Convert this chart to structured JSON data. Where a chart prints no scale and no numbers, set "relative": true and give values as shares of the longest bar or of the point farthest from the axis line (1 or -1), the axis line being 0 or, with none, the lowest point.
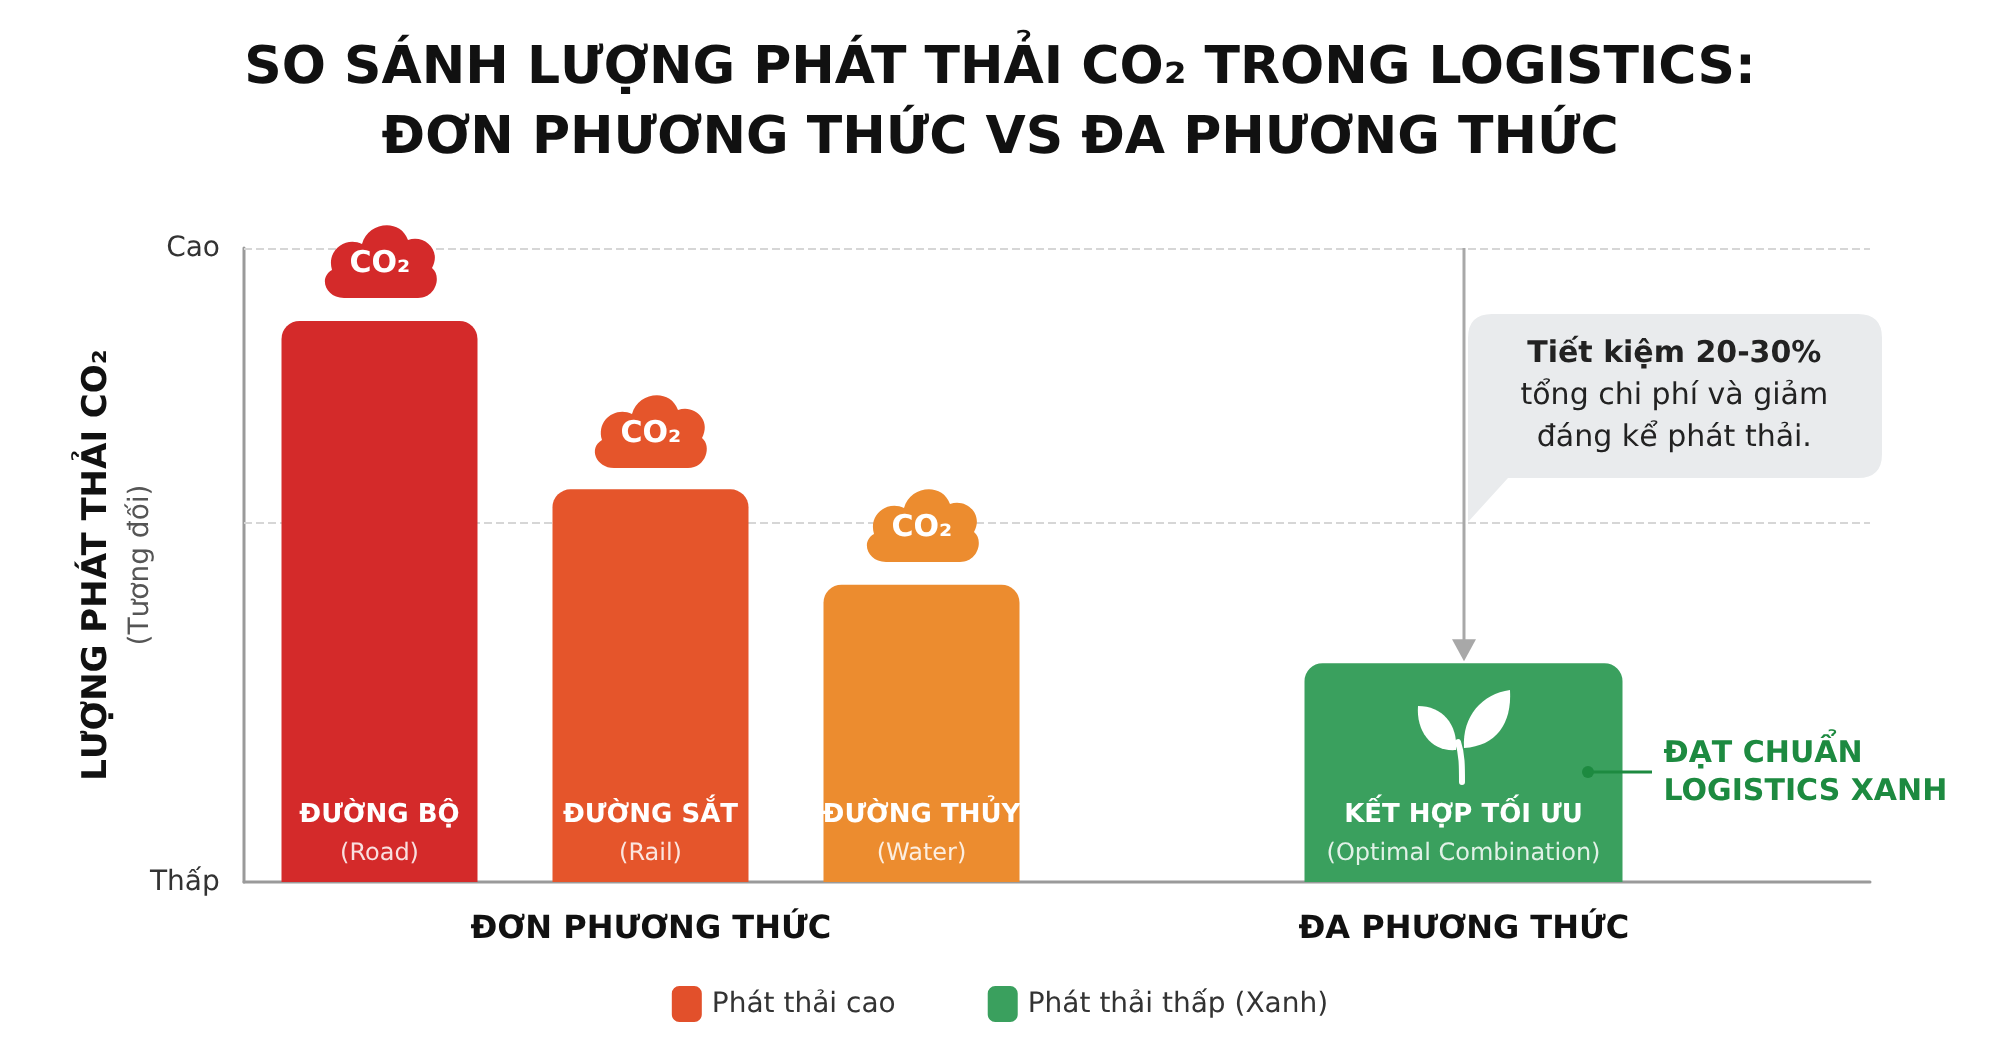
{
  "chart_data": {
    "type": "bar",
    "title": "SO SÁNH LƯỢNG PHÁT THẢI CO₂ TRONG LOGISTICS:\nĐƠN PHƯƠNG THỨC VS ĐA PHƯƠNG THỨC",
    "ylabel": "LƯỢNG PHÁT THẢI CO₂\n(Tương đối)",
    "categories": [
      "ĐƯỜNG BỘ\n(Road)",
      "ĐƯỜNG SẮT\n(Rail)",
      "ĐƯỜNG THỦY\n(Water)",
      null,
      "KẾT HỢP TỐI ƯU\n(Optimal Combination)",
      null
    ],
    "series": [
      {
        "name": "Phát thải cao",
        "color": "#e2502b",
        "colors": [
          "#d42a2a",
          "#e5552b",
          "#ec8c2f",
          null,
          null,
          null
        ],
        "values": [
          1,
          0.7,
          0.53,
          null,
          null,
          null
        ]
      },
      {
        "name": "Phát thải thấp (Xanh)",
        "color": "#3aa05e",
        "values": [
          null,
          null,
          null,
          null,
          0.39,
          null
        ]
      }
    ],
    "relative": true,
    "legend": "bottom",
    "ref_lines": [
      {
        "axis": "y",
        "value": 1.13,
        "label": "Cao",
        "color": "#d6d6d6",
        "line_style": "dashed"
      },
      {
        "axis": "y",
        "value": 0.64,
        "color": "#d6d6d6",
        "line_style": "dashed"
      }
    ],
    "annotations": [
      {
        "text": "CO₂",
        "x": "ĐƯỜNG BỘ\n(Road)",
        "y": 1
      },
      {
        "text": "CO₂",
        "x": "ĐƯỜNG SẮT\n(Rail)",
        "y": 0.7
      },
      {
        "text": "CO₂",
        "x": "ĐƯỜNG THỦY\n(Water)",
        "y": 0.53
      },
      "Thấp",
      "ĐƠN PHƯƠNG THỨC",
      "ĐA PHƯƠNG THỨC",
      "Tiết kiệm 20-30%\ntổng chi phí và giảm\nđáng kể phát thải.",
      "ĐẠT CHUẨN\nLOGISTICS XANH"
    ]
  }
}
